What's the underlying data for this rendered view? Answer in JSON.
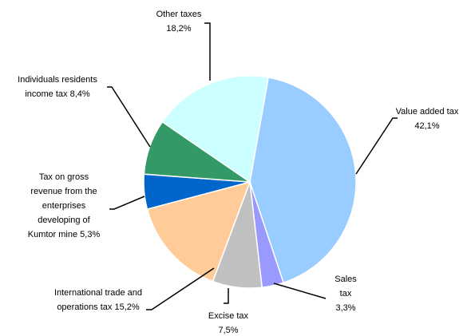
{
  "chart_data": {
    "type": "pie",
    "categories": [
      "Value added tax",
      "Sales tax",
      "Excise tax",
      "International trade and operations tax",
      "Tax on gross revenue from the enterprises developing of Kumtor mine",
      "Individuals residents income tax",
      "Other taxes"
    ],
    "values": [
      42.1,
      3.3,
      7.5,
      15.2,
      5.3,
      8.4,
      18.2
    ],
    "value_labels": [
      "42,1%",
      "3,3%",
      "7,5%",
      "15,2%",
      "5,3%",
      "8,4%",
      "18,2%"
    ],
    "colors": [
      "#99ccff",
      "#9999ff",
      "#c0c0c0",
      "#ffcc99",
      "#0066cc",
      "#339966",
      "#ccffff"
    ]
  }
}
